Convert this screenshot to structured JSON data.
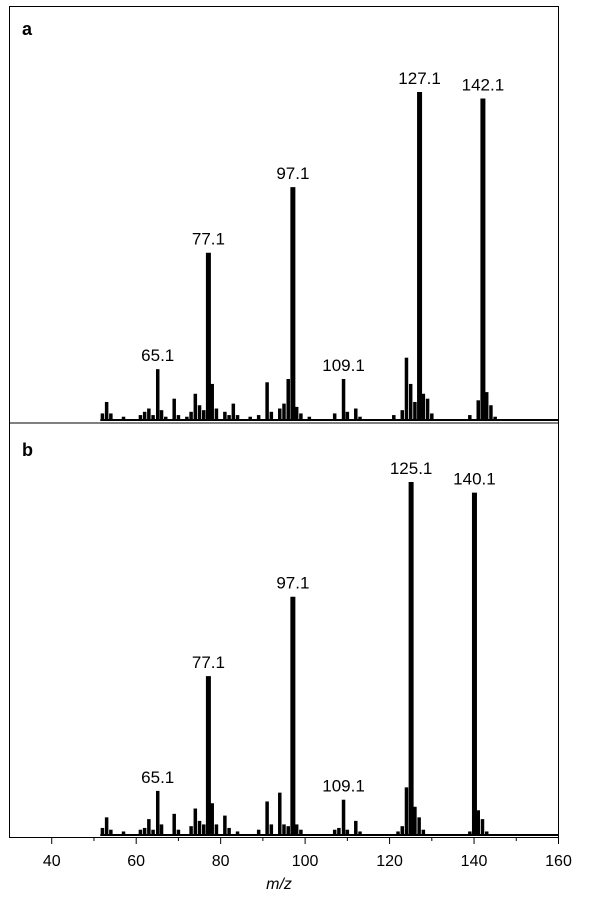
{
  "chart_data": [
    {
      "type": "bar",
      "panel_label": "a",
      "xlim": [
        30,
        160
      ],
      "ylim": [
        0,
        100
      ],
      "peaks": [
        {
          "mz": 52.0,
          "rel": 2.0
        },
        {
          "mz": 53.0,
          "rel": 5.5
        },
        {
          "mz": 54.0,
          "rel": 2.0
        },
        {
          "mz": 57.0,
          "rel": 1.0
        },
        {
          "mz": 61.0,
          "rel": 1.5
        },
        {
          "mz": 62.0,
          "rel": 2.5
        },
        {
          "mz": 63.0,
          "rel": 3.5
        },
        {
          "mz": 64.0,
          "rel": 1.5
        },
        {
          "mz": 65.1,
          "rel": 15.5,
          "label": "65.1"
        },
        {
          "mz": 66.0,
          "rel": 3.0
        },
        {
          "mz": 67.0,
          "rel": 1.0
        },
        {
          "mz": 69.0,
          "rel": 6.5
        },
        {
          "mz": 70.0,
          "rel": 1.5
        },
        {
          "mz": 72.0,
          "rel": 1.0
        },
        {
          "mz": 73.0,
          "rel": 2.5
        },
        {
          "mz": 74.0,
          "rel": 8.0
        },
        {
          "mz": 75.0,
          "rel": 4.5
        },
        {
          "mz": 76.0,
          "rel": 3.0
        },
        {
          "mz": 77.1,
          "rel": 51.0,
          "label": "77.1"
        },
        {
          "mz": 78.0,
          "rel": 11.0
        },
        {
          "mz": 79.0,
          "rel": 3.5
        },
        {
          "mz": 81.0,
          "rel": 2.5
        },
        {
          "mz": 82.0,
          "rel": 1.5
        },
        {
          "mz": 83.0,
          "rel": 5.0
        },
        {
          "mz": 84.0,
          "rel": 1.5
        },
        {
          "mz": 87.0,
          "rel": 1.0
        },
        {
          "mz": 89.0,
          "rel": 1.5
        },
        {
          "mz": 91.0,
          "rel": 11.5
        },
        {
          "mz": 92.0,
          "rel": 2.5
        },
        {
          "mz": 94.0,
          "rel": 3.5
        },
        {
          "mz": 95.0,
          "rel": 5.0
        },
        {
          "mz": 96.0,
          "rel": 12.5
        },
        {
          "mz": 97.1,
          "rel": 71.0,
          "label": "97.1"
        },
        {
          "mz": 98.0,
          "rel": 4.0
        },
        {
          "mz": 99.0,
          "rel": 2.0
        },
        {
          "mz": 101.0,
          "rel": 1.0
        },
        {
          "mz": 107.0,
          "rel": 2.0
        },
        {
          "mz": 109.1,
          "rel": 12.5,
          "label": "109.1"
        },
        {
          "mz": 110.0,
          "rel": 2.5
        },
        {
          "mz": 112.0,
          "rel": 3.5
        },
        {
          "mz": 113.0,
          "rel": 1.0
        },
        {
          "mz": 121.0,
          "rel": 1.5
        },
        {
          "mz": 123.0,
          "rel": 3.0
        },
        {
          "mz": 124.0,
          "rel": 19.0
        },
        {
          "mz": 125.0,
          "rel": 11.0
        },
        {
          "mz": 126.0,
          "rel": 5.5
        },
        {
          "mz": 127.1,
          "rel": 100.0,
          "label": "127.1"
        },
        {
          "mz": 128.0,
          "rel": 8.0
        },
        {
          "mz": 129.0,
          "rel": 6.5
        },
        {
          "mz": 130.0,
          "rel": 2.0
        },
        {
          "mz": 139.0,
          "rel": 1.5
        },
        {
          "mz": 141.0,
          "rel": 6.0
        },
        {
          "mz": 142.1,
          "rel": 98.0,
          "label": "142.1"
        },
        {
          "mz": 143.0,
          "rel": 8.5
        },
        {
          "mz": 144.0,
          "rel": 4.5
        },
        {
          "mz": 145.0,
          "rel": 1.0
        }
      ]
    },
    {
      "type": "bar",
      "panel_label": "b",
      "xlim": [
        30,
        160
      ],
      "ylim": [
        0,
        100
      ],
      "xlabel": "m/z",
      "xticks": [
        40,
        60,
        80,
        100,
        120,
        140,
        160
      ],
      "peaks": [
        {
          "mz": 52.0,
          "rel": 2.0
        },
        {
          "mz": 53.0,
          "rel": 5.0
        },
        {
          "mz": 54.0,
          "rel": 1.5
        },
        {
          "mz": 57.0,
          "rel": 1.0
        },
        {
          "mz": 61.0,
          "rel": 1.5
        },
        {
          "mz": 62.0,
          "rel": 2.0
        },
        {
          "mz": 63.0,
          "rel": 4.5
        },
        {
          "mz": 64.0,
          "rel": 1.5
        },
        {
          "mz": 65.1,
          "rel": 12.5,
          "label": "65.1"
        },
        {
          "mz": 66.0,
          "rel": 3.0
        },
        {
          "mz": 69.0,
          "rel": 6.0
        },
        {
          "mz": 70.0,
          "rel": 1.5
        },
        {
          "mz": 73.0,
          "rel": 2.5
        },
        {
          "mz": 74.0,
          "rel": 7.5
        },
        {
          "mz": 75.0,
          "rel": 4.0
        },
        {
          "mz": 76.0,
          "rel": 3.0
        },
        {
          "mz": 77.1,
          "rel": 45.0,
          "label": "77.1"
        },
        {
          "mz": 78.0,
          "rel": 9.0
        },
        {
          "mz": 79.0,
          "rel": 3.0
        },
        {
          "mz": 81.0,
          "rel": 5.5
        },
        {
          "mz": 82.0,
          "rel": 2.0
        },
        {
          "mz": 84.0,
          "rel": 1.0
        },
        {
          "mz": 89.0,
          "rel": 1.5
        },
        {
          "mz": 91.0,
          "rel": 9.5
        },
        {
          "mz": 92.0,
          "rel": 3.0
        },
        {
          "mz": 94.0,
          "rel": 12.0
        },
        {
          "mz": 95.0,
          "rel": 3.0
        },
        {
          "mz": 96.0,
          "rel": 2.5
        },
        {
          "mz": 97.1,
          "rel": 67.5,
          "label": "97.1"
        },
        {
          "mz": 98.0,
          "rel": 3.0
        },
        {
          "mz": 99.0,
          "rel": 1.5
        },
        {
          "mz": 107.0,
          "rel": 1.5
        },
        {
          "mz": 108.0,
          "rel": 2.0
        },
        {
          "mz": 109.1,
          "rel": 10.0,
          "label": "109.1"
        },
        {
          "mz": 110.0,
          "rel": 1.5
        },
        {
          "mz": 112.0,
          "rel": 4.0
        },
        {
          "mz": 113.0,
          "rel": 1.0
        },
        {
          "mz": 122.0,
          "rel": 1.0
        },
        {
          "mz": 123.0,
          "rel": 2.5
        },
        {
          "mz": 124.0,
          "rel": 13.5
        },
        {
          "mz": 125.1,
          "rel": 100.0,
          "label": "125.1"
        },
        {
          "mz": 126.0,
          "rel": 8.0
        },
        {
          "mz": 127.0,
          "rel": 5.0
        },
        {
          "mz": 128.0,
          "rel": 1.5
        },
        {
          "mz": 139.0,
          "rel": 1.0
        },
        {
          "mz": 140.1,
          "rel": 97.0,
          "label": "140.1"
        },
        {
          "mz": 141.0,
          "rel": 7.0
        },
        {
          "mz": 142.0,
          "rel": 4.5
        },
        {
          "mz": 143.0,
          "rel": 1.0
        }
      ]
    }
  ]
}
